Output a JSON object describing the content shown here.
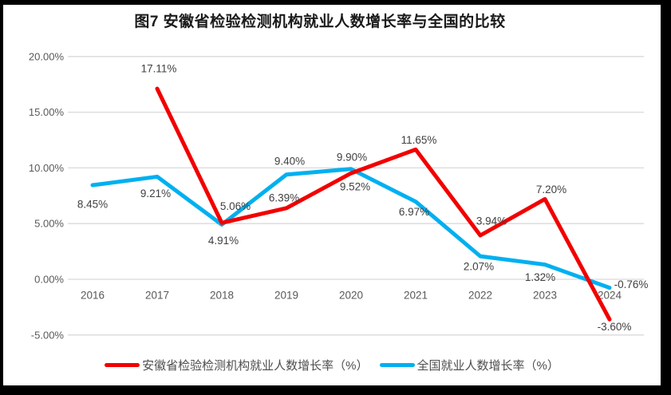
{
  "window": {
    "background": "#ffffff",
    "frame_border_color": "#000000"
  },
  "chart_data": {
    "type": "line",
    "title": "图7 安徽省检验检测机构就业人数增长率与全国的比较",
    "categories": [
      "2016",
      "2017",
      "2018",
      "2019",
      "2020",
      "2021",
      "2022",
      "2023",
      "2024"
    ],
    "series": [
      {
        "name": "安徽省检验检测机构就业人数增长率（%）",
        "color": "#F20000",
        "values": [
          null,
          17.11,
          5.06,
          6.39,
          9.52,
          11.65,
          3.94,
          7.2,
          -3.6
        ],
        "labels": [
          null,
          "17.11%",
          "5.06%",
          "6.39%",
          "9.52%",
          "11.65%",
          "3.94%",
          "7.20%",
          "-3.60%"
        ]
      },
      {
        "name": "全国就业人数增长率（%）",
        "color": "#00B0F0",
        "values": [
          8.45,
          9.21,
          4.91,
          9.4,
          9.9,
          6.97,
          2.07,
          1.32,
          -0.76
        ],
        "labels": [
          "8.45%",
          "9.21%",
          "4.91%",
          "9.40%",
          "9.90%",
          "6.97%",
          "2.07%",
          "1.32%",
          "-0.76%"
        ]
      }
    ],
    "y_axis": {
      "ticks": [
        "20.00%",
        "15.00%",
        "10.00%",
        "5.00%",
        "0.00%",
        "-5.00%"
      ],
      "tick_values": [
        20,
        15,
        10,
        5,
        0,
        -5
      ],
      "min": -5,
      "max": 20
    },
    "x_axis_label": "",
    "y_axis_label": "",
    "grid": true,
    "legend_position": "bottom",
    "gridline_color": "#D9D9D9",
    "axis_label_color": "#595959",
    "data_label_color": "#404040"
  }
}
